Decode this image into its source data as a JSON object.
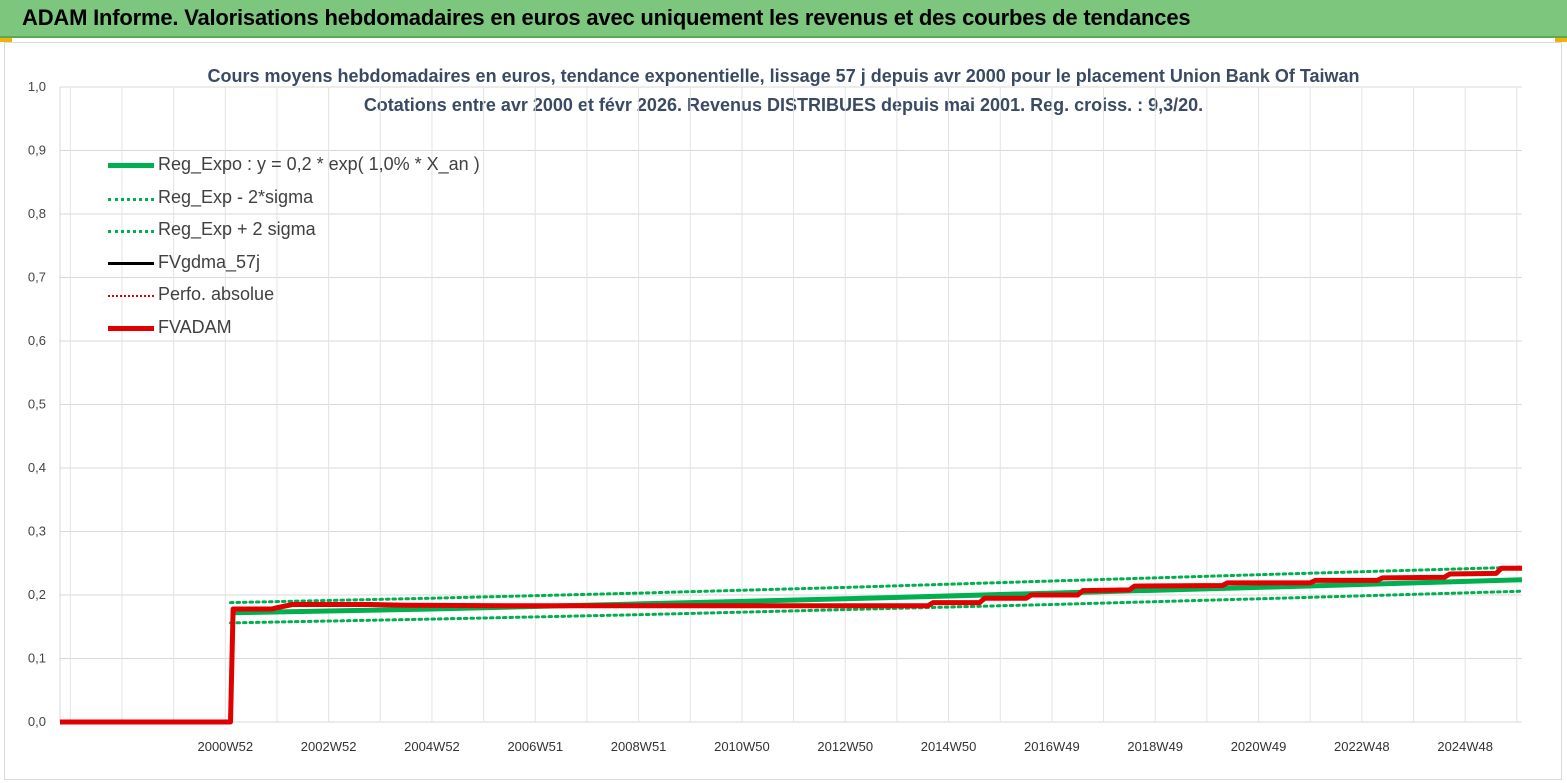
{
  "header": {
    "title": "ADAM Informe. Valorisations hebdomadaires en euros avec uniquement les revenus et des courbes de tendances"
  },
  "colors": {
    "banner": "#7dc67d",
    "reg_expo": "#00b050",
    "fvadam": "#e00000",
    "fvgdma": "#000000",
    "perfo": "#e00000"
  },
  "chart_data": {
    "type": "line",
    "title_line1": "Cours moyens hebdomadaires en euros, tendance exponentielle, lissage 57 j depuis avr 2000 pour le placement Union Bank Of Taiwan",
    "title_line2": "Cotations entre avr 2000 et févr 2026. Revenus DISTRIBUES depuis mai 2001. Reg. croiss. : 9,3/20.",
    "ylim": [
      0,
      1.0
    ],
    "yticks": [
      "0,0",
      "0,1",
      "0,2",
      "0,3",
      "0,4",
      "0,5",
      "0,6",
      "0,7",
      "0,8",
      "0,9",
      "1,0"
    ],
    "xlim": [
      1997.8,
      2026.1
    ],
    "xticks": [
      {
        "x": 2001.0,
        "label": "2000W52"
      },
      {
        "x": 2003.0,
        "label": "2002W52"
      },
      {
        "x": 2005.0,
        "label": "2004W52"
      },
      {
        "x": 2007.0,
        "label": "2006W51"
      },
      {
        "x": 2009.0,
        "label": "2008W51"
      },
      {
        "x": 2011.0,
        "label": "2010W50"
      },
      {
        "x": 2013.0,
        "label": "2012W50"
      },
      {
        "x": 2015.0,
        "label": "2014W50"
      },
      {
        "x": 2017.0,
        "label": "2016W49"
      },
      {
        "x": 2019.0,
        "label": "2018W49"
      },
      {
        "x": 2021.0,
        "label": "2020W49"
      },
      {
        "x": 2023.0,
        "label": "2022W48"
      },
      {
        "x": 2025.0,
        "label": "2024W48"
      }
    ],
    "grid": true,
    "legend_position": "top-left",
    "series": [
      {
        "name": "Reg_Expo : y = 0,2 * exp( 1,0% *  X_an )",
        "style": "solid-thick",
        "color": "#00b050",
        "points": [
          [
            2001.1,
            0.172
          ],
          [
            2005.0,
            0.178
          ],
          [
            2009.0,
            0.186
          ],
          [
            2013.0,
            0.194
          ],
          [
            2017.0,
            0.203
          ],
          [
            2021.0,
            0.212
          ],
          [
            2026.1,
            0.224
          ]
        ]
      },
      {
        "name": "Reg_Exp - 2*sigma",
        "style": "dotted",
        "color": "#00b050",
        "points": [
          [
            2001.1,
            0.156
          ],
          [
            2005.0,
            0.162
          ],
          [
            2009.0,
            0.169
          ],
          [
            2013.0,
            0.177
          ],
          [
            2017.0,
            0.185
          ],
          [
            2021.0,
            0.194
          ],
          [
            2026.1,
            0.206
          ]
        ]
      },
      {
        "name": "Reg_Exp + 2 sigma",
        "style": "dotted",
        "color": "#00b050",
        "points": [
          [
            2001.1,
            0.188
          ],
          [
            2005.0,
            0.195
          ],
          [
            2009.0,
            0.203
          ],
          [
            2013.0,
            0.212
          ],
          [
            2017.0,
            0.222
          ],
          [
            2021.0,
            0.232
          ],
          [
            2026.1,
            0.244
          ]
        ]
      },
      {
        "name": "FVgdma_57j",
        "style": "solid",
        "color": "#000000",
        "points": []
      },
      {
        "name": "Perfo. absolue",
        "style": "dotted-thin",
        "color": "#e00000",
        "points": []
      },
      {
        "name": "FVADAM",
        "style": "solid-thick",
        "color": "#e00000",
        "points": [
          [
            1997.8,
            0.0
          ],
          [
            2001.1,
            0.0
          ],
          [
            2001.15,
            0.178
          ],
          [
            2001.9,
            0.178
          ],
          [
            2002.0,
            0.18
          ],
          [
            2002.3,
            0.185
          ],
          [
            2003.8,
            0.185
          ],
          [
            2004.5,
            0.184
          ],
          [
            2006.5,
            0.183
          ],
          [
            2008.5,
            0.183
          ],
          [
            2010.5,
            0.183
          ],
          [
            2012.5,
            0.183
          ],
          [
            2014.6,
            0.183
          ],
          [
            2014.7,
            0.188
          ],
          [
            2015.6,
            0.188
          ],
          [
            2015.7,
            0.195
          ],
          [
            2016.5,
            0.195
          ],
          [
            2016.6,
            0.2
          ],
          [
            2017.5,
            0.2
          ],
          [
            2017.6,
            0.207
          ],
          [
            2018.5,
            0.208
          ],
          [
            2018.6,
            0.214
          ],
          [
            2020.3,
            0.215
          ],
          [
            2020.4,
            0.219
          ],
          [
            2022.0,
            0.219
          ],
          [
            2022.1,
            0.223
          ],
          [
            2023.3,
            0.223
          ],
          [
            2023.4,
            0.227
          ],
          [
            2024.6,
            0.228
          ],
          [
            2024.7,
            0.233
          ],
          [
            2025.6,
            0.234
          ],
          [
            2025.7,
            0.242
          ],
          [
            2026.1,
            0.242
          ]
        ]
      }
    ]
  }
}
